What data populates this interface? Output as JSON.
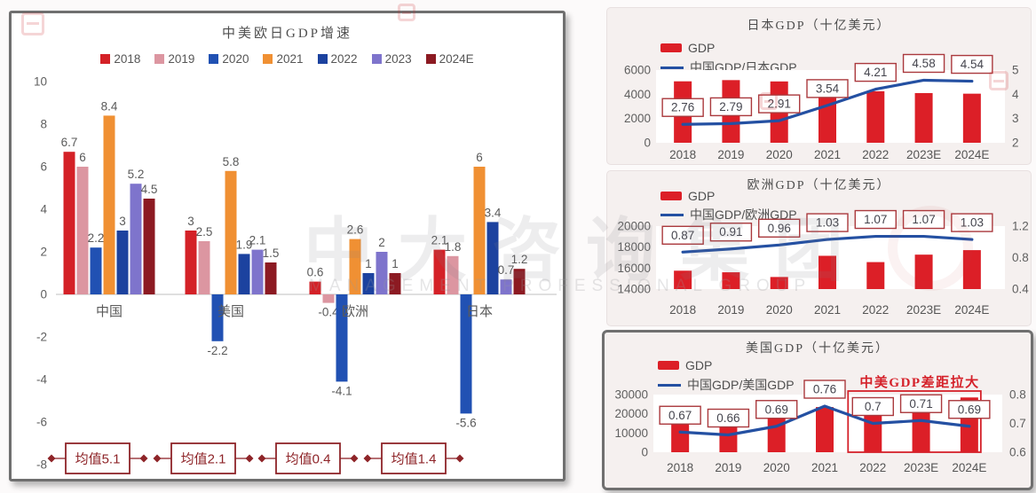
{
  "watermark": {
    "cn_text": "中大咨询集团",
    "en_text": "MANAGEMENT PROFESSIONAL GROUP"
  },
  "colors": {
    "bar_red": "#dc1f27",
    "line_blue": "#2450a2",
    "label_box_border": "#aa393d",
    "label_box_text": "#45454e",
    "average_red": "#8e2428",
    "axis_text": "#5f5f5f",
    "category_text": "#595959",
    "value_label_text": "#5a5a5a",
    "annotation_red": "#d5212a"
  },
  "chart_data": [
    {
      "type": "bar",
      "title": "中美欧日GDP增速",
      "categories": [
        "中国",
        "美国",
        "欧洲",
        "日本"
      ],
      "series": [
        {
          "name": "2018",
          "color": "#d42127",
          "values": [
            6.7,
            3,
            0.6,
            2.1
          ]
        },
        {
          "name": "2019",
          "color": "#dc96a1",
          "values": [
            6,
            2.5,
            -0.4,
            1.8
          ]
        },
        {
          "name": "2020",
          "color": "#2151b3",
          "values": [
            2.2,
            -2.2,
            -4.1,
            -5.6
          ]
        },
        {
          "name": "2021",
          "color": "#f09033",
          "values": [
            8.4,
            5.8,
            2.6,
            6
          ]
        },
        {
          "name": "2022",
          "color": "#1c429f",
          "values": [
            3,
            1.9,
            1,
            3.4
          ]
        },
        {
          "name": "2023",
          "color": "#7e74cc",
          "values": [
            5.2,
            2.1,
            2,
            0.7
          ]
        },
        {
          "name": "2024E",
          "color": "#8c1a22",
          "values": [
            4.5,
            1.5,
            1,
            1.2
          ]
        }
      ],
      "y_ticks": [
        10,
        8,
        6,
        4,
        2,
        0,
        -2,
        -4,
        -6,
        -8
      ],
      "ylim": [
        -8,
        10
      ],
      "grid": false,
      "legend_position": "top",
      "averages": {
        "prefix": "均值",
        "values": [
          5.1,
          2.1,
          0.4,
          1.4
        ]
      }
    },
    {
      "type": "bar+line",
      "title": "日本GDP（十亿美元）",
      "bar_legend": "GDP",
      "line_legend": "中国GDP/日本GDP",
      "categories": [
        "2018",
        "2019",
        "2020",
        "2021",
        "2022",
        "2023E",
        "2024E"
      ],
      "bars": [
        5070,
        5170,
        5060,
        4940,
        4250,
        4100,
        4050
      ],
      "line": [
        2.76,
        2.79,
        2.91,
        3.54,
        4.21,
        4.58,
        4.54
      ],
      "left_axis": {
        "ticks": [
          0,
          2000,
          4000,
          6000
        ],
        "range": [
          0,
          6000
        ]
      },
      "right_axis": {
        "ticks": [
          2,
          3,
          4,
          5
        ],
        "range": [
          2,
          5
        ]
      }
    },
    {
      "type": "bar+line",
      "title": "欧洲GDP（十亿美元）",
      "bar_legend": "GDP",
      "line_legend": "中国GDP/欧洲GDP",
      "categories": [
        "2018",
        "2019",
        "2020",
        "2021",
        "2022",
        "2023E",
        "2024E"
      ],
      "bars": [
        15750,
        15600,
        15150,
        17170,
        16570,
        17280,
        17710
      ],
      "line": [
        0.87,
        0.91,
        0.96,
        1.03,
        1.07,
        1.07,
        1.03
      ],
      "left_axis": {
        "ticks": [
          14000,
          16000,
          18000,
          20000
        ],
        "range": [
          14000,
          20000
        ]
      },
      "right_axis": {
        "ticks": [
          0.4,
          0.8,
          1.2
        ],
        "range": [
          0.4,
          1.2
        ]
      }
    },
    {
      "type": "bar+line",
      "title": "美国GDP（十亿美元）",
      "bar_legend": "GDP",
      "line_legend": "中国GDP/美国GDP",
      "categories": [
        "2018",
        "2019",
        "2020",
        "2021",
        "2022",
        "2023E",
        "2024E"
      ],
      "bars": [
        20500,
        21400,
        21100,
        23500,
        25500,
        27000,
        28500
      ],
      "line": [
        0.67,
        0.66,
        0.69,
        0.76,
        0.7,
        0.71,
        0.69
      ],
      "left_axis": {
        "ticks": [
          0,
          10000,
          20000,
          30000
        ],
        "range": [
          0,
          30000
        ]
      },
      "right_axis": {
        "ticks": [
          0.6,
          0.7,
          0.8
        ],
        "range": [
          0.6,
          0.8
        ]
      },
      "annotation": {
        "text": "中美GDP差距拉大",
        "from_index": 4
      }
    }
  ]
}
